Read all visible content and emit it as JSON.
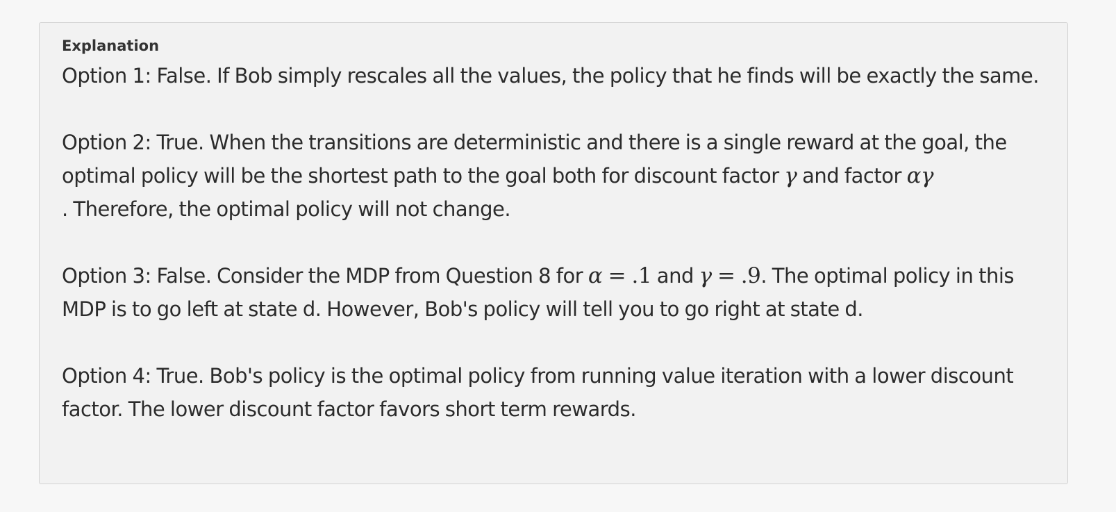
{
  "explanation": {
    "heading": "Explanation",
    "options": [
      {
        "parts": [
          "Option 1: False. If Bob simply rescales all the values, the policy that he finds will be exactly the same."
        ]
      },
      {
        "text_before_gamma": "Option 2: True. When the transitions are deterministic and there is a single reward at the goal, the optimal policy will be the shortest path to the goal both for discount factor ",
        "gamma": "γ",
        "text_between": " and factor ",
        "alpha_gamma": "αγ",
        "text_after": ". Therefore, the optimal policy will not change."
      },
      {
        "text_before": "Option 3: False. Consider the MDP from Question 8 for ",
        "alpha_expr_var": "α",
        "alpha_expr_val": " = .1",
        "text_and": " and ",
        "gamma_expr_var": "γ",
        "gamma_expr_val": " = .9",
        "text_after": ". The optimal policy in this MDP is to go left at state d. However, Bob's policy will tell you to go right at state d."
      },
      {
        "parts": [
          "Option 4: True. Bob's policy is the optimal policy from running value iteration with a lower discount factor. The lower discount factor favors short term rewards."
        ]
      }
    ]
  }
}
